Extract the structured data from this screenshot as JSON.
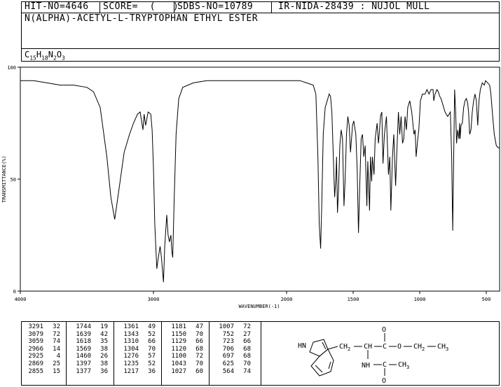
{
  "header": {
    "hit_no": "HIT-NO=4646",
    "score": "SCORE=  (   )",
    "sdbs_no": "SDBS-NO=10789",
    "ir_info": "IR-NIDA-28439 : NUJOL MULL",
    "compound": "N(ALPHA)-ACETYL-L-TRYPTOPHAN ETHYL ESTER",
    "formula": {
      "c": "C",
      "c_sub": "15",
      "h": "H",
      "h_sub": "18",
      "n": "N",
      "n_sub": "2",
      "o": "O",
      "o_sub": "3"
    }
  },
  "chart_data": {
    "type": "line",
    "xlabel": "WAVENUMBER(-1)",
    "ylabel": "TRANSMITTANCE(%)",
    "xlim": [
      4000,
      400
    ],
    "ylim": [
      0,
      100
    ],
    "x_ticks": [
      4000,
      3000,
      2000,
      1500,
      1000,
      500
    ],
    "y_ticks": [
      {
        "value": 0,
        "label": "0"
      },
      {
        "value": 50,
        "label": "50"
      },
      {
        "value": 100,
        "label": "100"
      }
    ],
    "series": [
      {
        "points": [
          [
            4000,
            94
          ],
          [
            3900,
            94
          ],
          [
            3800,
            93
          ],
          [
            3700,
            92
          ],
          [
            3600,
            92
          ],
          [
            3500,
            91
          ],
          [
            3450,
            89
          ],
          [
            3400,
            82
          ],
          [
            3350,
            60
          ],
          [
            3320,
            42
          ],
          [
            3291,
            32
          ],
          [
            3260,
            45
          ],
          [
            3220,
            62
          ],
          [
            3180,
            70
          ],
          [
            3150,
            75
          ],
          [
            3120,
            79
          ],
          [
            3100,
            80
          ],
          [
            3079,
            72
          ],
          [
            3070,
            79
          ],
          [
            3059,
            74
          ],
          [
            3040,
            80
          ],
          [
            3020,
            79
          ],
          [
            3010,
            72
          ],
          [
            3000,
            55
          ],
          [
            2990,
            30
          ],
          [
            2975,
            10
          ],
          [
            2966,
            14
          ],
          [
            2950,
            20
          ],
          [
            2940,
            15
          ],
          [
            2925,
            4
          ],
          [
            2915,
            20
          ],
          [
            2900,
            34
          ],
          [
            2890,
            25
          ],
          [
            2880,
            22
          ],
          [
            2869,
            25
          ],
          [
            2862,
            18
          ],
          [
            2855,
            15
          ],
          [
            2845,
            40
          ],
          [
            2830,
            70
          ],
          [
            2810,
            86
          ],
          [
            2780,
            91
          ],
          [
            2700,
            93
          ],
          [
            2600,
            94
          ],
          [
            2500,
            94
          ],
          [
            2400,
            94
          ],
          [
            2300,
            94
          ],
          [
            2200,
            94
          ],
          [
            2100,
            94
          ],
          [
            2000,
            94
          ],
          [
            1950,
            94
          ],
          [
            1900,
            94
          ],
          [
            1850,
            93
          ],
          [
            1800,
            92
          ],
          [
            1780,
            88
          ],
          [
            1765,
            60
          ],
          [
            1755,
            30
          ],
          [
            1744,
            19
          ],
          [
            1735,
            40
          ],
          [
            1725,
            70
          ],
          [
            1710,
            82
          ],
          [
            1690,
            86
          ],
          [
            1680,
            88
          ],
          [
            1670,
            87
          ],
          [
            1660,
            80
          ],
          [
            1650,
            62
          ],
          [
            1639,
            42
          ],
          [
            1630,
            50
          ],
          [
            1625,
            60
          ],
          [
            1618,
            35
          ],
          [
            1610,
            45
          ],
          [
            1600,
            65
          ],
          [
            1590,
            72
          ],
          [
            1580,
            68
          ],
          [
            1569,
            38
          ],
          [
            1560,
            50
          ],
          [
            1550,
            70
          ],
          [
            1540,
            78
          ],
          [
            1530,
            74
          ],
          [
            1520,
            62
          ],
          [
            1505,
            74
          ],
          [
            1495,
            76
          ],
          [
            1480,
            70
          ],
          [
            1470,
            55
          ],
          [
            1460,
            26
          ],
          [
            1450,
            48
          ],
          [
            1440,
            68
          ],
          [
            1430,
            70
          ],
          [
            1420,
            60
          ],
          [
            1410,
            65
          ],
          [
            1397,
            38
          ],
          [
            1390,
            58
          ],
          [
            1377,
            36
          ],
          [
            1370,
            60
          ],
          [
            1361,
            49
          ],
          [
            1355,
            60
          ],
          [
            1343,
            52
          ],
          [
            1335,
            68
          ],
          [
            1320,
            75
          ],
          [
            1310,
            66
          ],
          [
            1304,
            70
          ],
          [
            1295,
            78
          ],
          [
            1285,
            80
          ],
          [
            1276,
            57
          ],
          [
            1265,
            70
          ],
          [
            1250,
            78
          ],
          [
            1235,
            52
          ],
          [
            1225,
            60
          ],
          [
            1217,
            36
          ],
          [
            1205,
            60
          ],
          [
            1195,
            70
          ],
          [
            1181,
            47
          ],
          [
            1170,
            65
          ],
          [
            1160,
            80
          ],
          [
            1150,
            70
          ],
          [
            1140,
            78
          ],
          [
            1129,
            66
          ],
          [
            1120,
            68
          ],
          [
            1110,
            78
          ],
          [
            1100,
            72
          ],
          [
            1090,
            82
          ],
          [
            1075,
            85
          ],
          [
            1060,
            80
          ],
          [
            1043,
            70
          ],
          [
            1035,
            72
          ],
          [
            1027,
            60
          ],
          [
            1015,
            68
          ],
          [
            1007,
            72
          ],
          [
            995,
            85
          ],
          [
            980,
            88
          ],
          [
            960,
            88
          ],
          [
            945,
            90
          ],
          [
            930,
            88
          ],
          [
            915,
            90
          ],
          [
            900,
            90
          ],
          [
            895,
            85
          ],
          [
            885,
            88
          ],
          [
            870,
            90
          ],
          [
            860,
            89
          ],
          [
            850,
            87
          ],
          [
            840,
            86
          ],
          [
            830,
            84
          ],
          [
            820,
            82
          ],
          [
            810,
            80
          ],
          [
            800,
            79
          ],
          [
            790,
            78
          ],
          [
            780,
            79
          ],
          [
            770,
            80
          ],
          [
            760,
            60
          ],
          [
            752,
            27
          ],
          [
            745,
            60
          ],
          [
            738,
            90
          ],
          [
            730,
            80
          ],
          [
            723,
            66
          ],
          [
            715,
            72
          ],
          [
            706,
            68
          ],
          [
            700,
            75
          ],
          [
            697,
            68
          ],
          [
            690,
            74
          ],
          [
            680,
            75
          ],
          [
            670,
            82
          ],
          [
            660,
            85
          ],
          [
            650,
            86
          ],
          [
            640,
            84
          ],
          [
            633,
            80
          ],
          [
            625,
            70
          ],
          [
            615,
            72
          ],
          [
            605,
            80
          ],
          [
            595,
            85
          ],
          [
            585,
            88
          ],
          [
            575,
            85
          ],
          [
            564,
            74
          ],
          [
            555,
            85
          ],
          [
            545,
            90
          ],
          [
            530,
            93
          ],
          [
            515,
            92
          ],
          [
            505,
            94
          ],
          [
            490,
            93
          ],
          [
            475,
            92
          ],
          [
            465,
            88
          ],
          [
            455,
            80
          ],
          [
            440,
            70
          ],
          [
            425,
            65
          ],
          [
            410,
            64
          ],
          [
            400,
            64
          ]
        ]
      }
    ]
  },
  "peak_table": {
    "columns": [
      [
        [
          "3291",
          "32"
        ],
        [
          "3079",
          "72"
        ],
        [
          "3059",
          "74"
        ],
        [
          "2966",
          "14"
        ],
        [
          "2925",
          "4"
        ],
        [
          "2869",
          "25"
        ],
        [
          "2855",
          "15"
        ]
      ],
      [
        [
          "1744",
          "19"
        ],
        [
          "1639",
          "42"
        ],
        [
          "1618",
          "35"
        ],
        [
          "1569",
          "38"
        ],
        [
          "1460",
          "26"
        ],
        [
          "1397",
          "38"
        ],
        [
          "1377",
          "36"
        ]
      ],
      [
        [
          "1361",
          "49"
        ],
        [
          "1343",
          "52"
        ],
        [
          "1310",
          "66"
        ],
        [
          "1304",
          "70"
        ],
        [
          "1276",
          "57"
        ],
        [
          "1235",
          "52"
        ],
        [
          "1217",
          "36"
        ]
      ],
      [
        [
          "1181",
          "47"
        ],
        [
          "1150",
          "70"
        ],
        [
          "1129",
          "66"
        ],
        [
          "1120",
          "68"
        ],
        [
          "1100",
          "72"
        ],
        [
          "1043",
          "70"
        ],
        [
          "1027",
          "60"
        ]
      ],
      [
        [
          "1007",
          "72"
        ],
        [
          "752",
          "27"
        ],
        [
          "723",
          "66"
        ],
        [
          "706",
          "68"
        ],
        [
          "697",
          "68"
        ],
        [
          "625",
          "70"
        ],
        [
          "564",
          "74"
        ]
      ]
    ]
  },
  "structure": {
    "indole_nh": "HN",
    "chain": "CH₂ — CH — C — O — CH₂ — CH₃",
    "ch2": "CH",
    "ch2_sub": "2",
    "ch": "CH",
    "c1": "C",
    "o_ester": "O",
    "ch2b": "CH",
    "ch2b_sub": "2",
    "ch3": "CH",
    "ch3_sub": "3",
    "o_top": "O",
    "nh": "NH",
    "c2": "C",
    "ch3b": "CH",
    "ch3b_sub": "3",
    "o_bottom": "O"
  }
}
